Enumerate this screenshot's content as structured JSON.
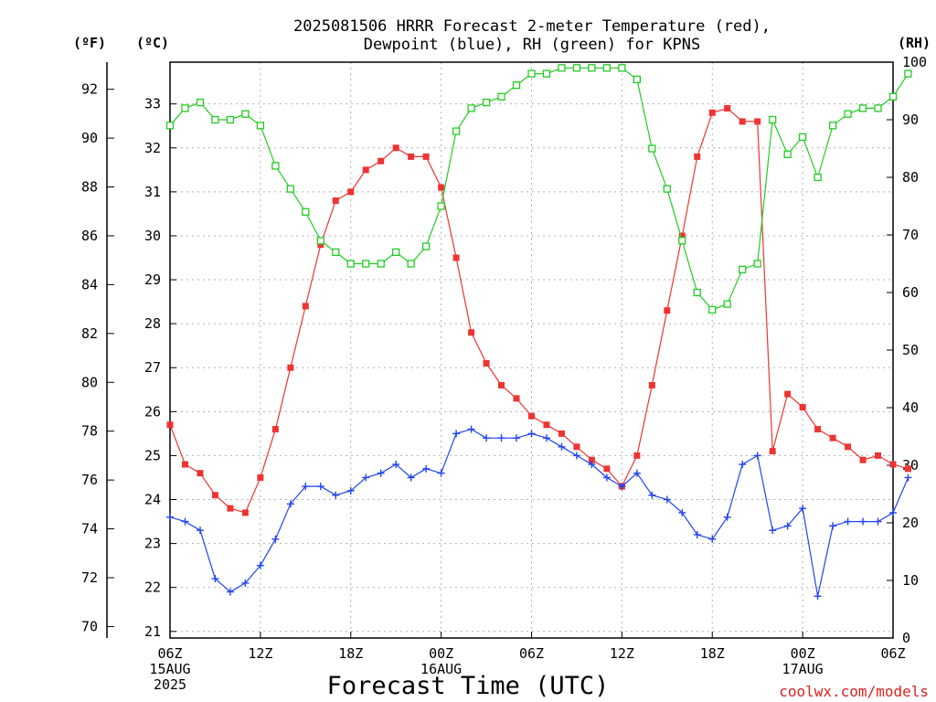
{
  "title": {
    "line1": "2025081506 HRRR Forecast 2-meter Temperature (red),",
    "line2": "Dewpoint (blue), RH (green) for KPNS"
  },
  "axis_units": {
    "left_f": "(ºF)",
    "left_c": "(ºC)",
    "right_rh": "(RH)"
  },
  "xlabel": "Forecast Time (UTC)",
  "credit": "coolwx.com/models",
  "chart_data": {
    "type": "line",
    "title": "2025081506 HRRR Forecast 2-meter Temperature (red), Dewpoint (blue), RH (green) for KPNS",
    "xlabel": "Forecast Time (UTC)",
    "x_unit": "forecast hour (0 = 06Z 15AUG 2025)",
    "xlim": [
      0,
      48
    ],
    "x_ticks": [
      {
        "x": 0,
        "lines": [
          "06Z",
          "15AUG",
          "2025"
        ]
      },
      {
        "x": 6,
        "lines": [
          "12Z"
        ]
      },
      {
        "x": 12,
        "lines": [
          "18Z"
        ]
      },
      {
        "x": 18,
        "lines": [
          "00Z",
          "16AUG"
        ]
      },
      {
        "x": 24,
        "lines": [
          "06Z"
        ]
      },
      {
        "x": 30,
        "lines": [
          "12Z"
        ]
      },
      {
        "x": 36,
        "lines": [
          "18Z"
        ]
      },
      {
        "x": 42,
        "lines": [
          "00Z",
          "17AUG"
        ]
      },
      {
        "x": 48,
        "lines": [
          "06Z"
        ]
      }
    ],
    "y_left_c": {
      "label": "(ºC)",
      "ylim": [
        20.85,
        33.95
      ],
      "ticks": [
        21,
        22,
        23,
        24,
        25,
        26,
        27,
        28,
        29,
        30,
        31,
        32,
        33
      ]
    },
    "y_left_f": {
      "label": "(ºF)",
      "ticks": [
        70,
        72,
        74,
        76,
        78,
        80,
        82,
        84,
        86,
        88,
        90,
        92
      ]
    },
    "y_right": {
      "label": "(RH)",
      "ylim": [
        0,
        100
      ],
      "ticks": [
        0,
        10,
        20,
        30,
        40,
        50,
        60,
        70,
        80,
        90,
        100
      ]
    },
    "grid": true,
    "series": [
      {
        "name": "Temperature",
        "color": "#ee3333",
        "marker": "filled-square",
        "axis": "celsius",
        "values": [
          25.7,
          24.8,
          24.6,
          24.1,
          23.8,
          23.7,
          24.5,
          25.6,
          27.0,
          28.4,
          29.8,
          30.8,
          31.0,
          31.5,
          31.7,
          32.0,
          31.8,
          31.8,
          31.1,
          29.5,
          27.8,
          27.1,
          26.6,
          26.3,
          25.9,
          25.7,
          25.5,
          25.2,
          24.9,
          24.7,
          24.3,
          25.0,
          26.6,
          28.3,
          30.0,
          31.8,
          32.8,
          32.9,
          32.6,
          32.6,
          25.1,
          26.4,
          26.1,
          25.6,
          25.4,
          25.2,
          24.9,
          25.0,
          24.8,
          24.7
        ]
      },
      {
        "name": "Dewpoint",
        "color": "#2244ee",
        "marker": "plus",
        "axis": "celsius",
        "values": [
          23.6,
          23.5,
          23.3,
          22.2,
          21.9,
          22.1,
          22.5,
          23.1,
          23.9,
          24.3,
          24.3,
          24.1,
          24.2,
          24.5,
          24.6,
          24.8,
          24.5,
          24.7,
          24.6,
          25.5,
          25.6,
          25.4,
          25.4,
          25.4,
          25.5,
          25.4,
          25.2,
          25.0,
          24.8,
          24.5,
          24.3,
          24.6,
          24.1,
          24.0,
          23.7,
          23.2,
          23.1,
          23.6,
          24.8,
          25.0,
          23.3,
          23.4,
          23.8,
          21.8,
          23.4,
          23.5,
          23.5,
          23.5,
          23.7,
          24.5
        ]
      },
      {
        "name": "RH",
        "color": "#22cc22",
        "marker": "open-square",
        "axis": "rh",
        "values": [
          89,
          92,
          93,
          90,
          90,
          91,
          89,
          82,
          78,
          74,
          69,
          67,
          65,
          65,
          65,
          67,
          65,
          68,
          75,
          88,
          92,
          93,
          94,
          96,
          98,
          98,
          99,
          99,
          99,
          99,
          99,
          97,
          85,
          78,
          69,
          60,
          57,
          58,
          64,
          65,
          90,
          84,
          87,
          80,
          89,
          91,
          92,
          92,
          94,
          98
        ]
      }
    ]
  }
}
